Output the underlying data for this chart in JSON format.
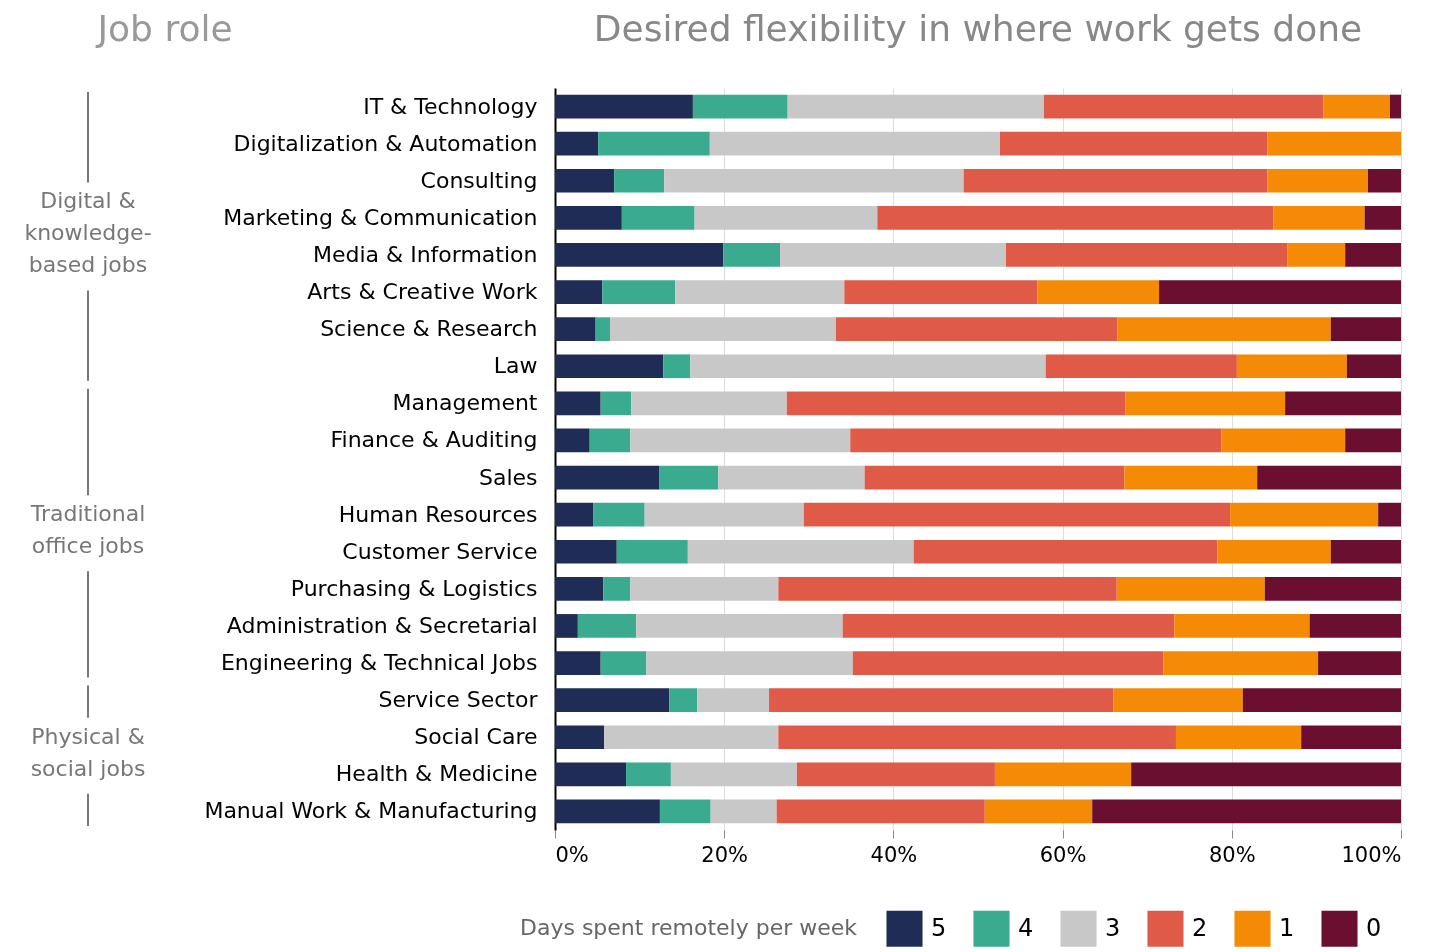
{
  "chart_data": {
    "type": "bar",
    "orientation": "horizontal",
    "stacked": true,
    "title": "Desired flexibility in where work gets done",
    "ylabel": "Job role",
    "legend_title": "Days spent remotely per week",
    "legend": "bottom",
    "grid": "x",
    "categories": [
      "IT & Technology",
      "Digitalization & Automation",
      "Consulting",
      "Marketing & Communication",
      "Media & Information",
      "Arts & Creative Work",
      "Science & Research",
      "Law",
      "Management",
      "Finance & Auditing",
      "Sales",
      "Human Resources",
      "Customer Service",
      "Purchasing & Logistics",
      "Administration & Secretarial",
      "Engineering & Technical Jobs",
      "Service Sector",
      "Social Care",
      "Health & Medicine",
      "Manual Work & Manufacturing"
    ],
    "xlim": [
      0,
      100
    ],
    "xticks": [
      {
        "value": 0,
        "label": "0%"
      },
      {
        "value": 20,
        "label": "20%"
      },
      {
        "value": 40,
        "label": "40%"
      },
      {
        "value": 60,
        "label": "60%"
      },
      {
        "value": 80,
        "label": "80%"
      },
      {
        "value": 100,
        "label": "100%"
      }
    ],
    "annotations": [
      "Digital &\nknowledge-\nbased jobs",
      "Traditional\noffice jobs",
      "Physical &\nsocial jobs"
    ],
    "series": [
      {
        "name": "5",
        "color": "#1f2d56",
        "values": [
          16.3,
          5.1,
          7.0,
          7.9,
          19.9,
          5.6,
          4.8,
          12.8,
          5.4,
          4.1,
          12.3,
          4.5,
          7.3,
          5.7,
          2.7,
          5.4,
          13.5,
          5.8,
          8.4,
          12.4
        ]
      },
      {
        "name": "4",
        "color": "#3aab8f",
        "values": [
          11.2,
          13.2,
          5.9,
          8.6,
          6.7,
          8.6,
          1.7,
          3.2,
          3.6,
          4.8,
          7.0,
          6.1,
          8.4,
          3.2,
          6.9,
          5.4,
          3.3,
          0,
          5.3,
          6.0
        ]
      },
      {
        "name": "3",
        "color": "#c8c8c8",
        "values": [
          30.3,
          34.3,
          35.4,
          21.6,
          26.7,
          20.0,
          26.7,
          42.0,
          18.4,
          26.0,
          17.3,
          18.8,
          26.7,
          17.5,
          24.4,
          24.4,
          8.5,
          20.6,
          14.9,
          7.8
        ]
      },
      {
        "name": "2",
        "color": "#e05a48",
        "values": [
          33.0,
          31.6,
          35.9,
          46.8,
          33.3,
          22.8,
          33.3,
          22.6,
          40.0,
          43.9,
          30.7,
          50.4,
          35.9,
          40.0,
          39.2,
          36.7,
          40.7,
          47.0,
          23.4,
          24.6
        ]
      },
      {
        "name": "1",
        "color": "#f58a07",
        "values": [
          7.9,
          15.8,
          11.9,
          10.8,
          6.8,
          14.4,
          25.2,
          13.0,
          18.9,
          14.6,
          15.7,
          17.5,
          13.4,
          17.5,
          16.0,
          18.3,
          15.3,
          14.8,
          16.1,
          12.7
        ]
      },
      {
        "name": "0",
        "color": "#6b0f30",
        "values": [
          1.3,
          0,
          3.9,
          4.3,
          6.6,
          28.6,
          8.3,
          6.4,
          13.7,
          6.6,
          17.0,
          2.7,
          8.3,
          16.1,
          10.8,
          9.8,
          18.7,
          11.8,
          31.9,
          36.5
        ]
      }
    ]
  }
}
